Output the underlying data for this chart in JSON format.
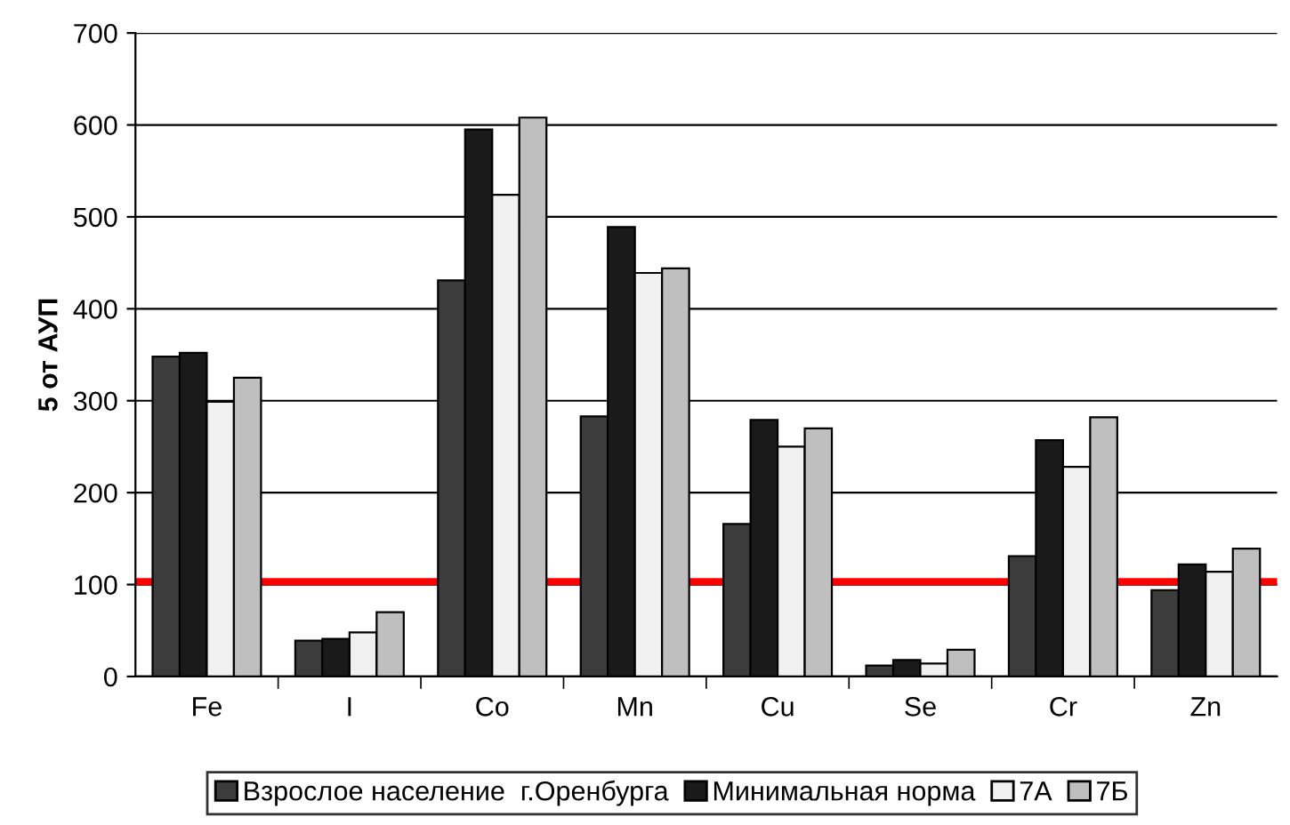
{
  "chart_data": {
    "type": "bar",
    "ylabel": "5 от АУП",
    "categories": [
      "Fe",
      "I",
      "Co",
      "Mn",
      "Cu",
      "Se",
      "Cr",
      "Zn"
    ],
    "series": [
      {
        "name": "Взрослое население  г.Оренбурга",
        "color": "#3c3c3c",
        "values": [
          348,
          39,
          431,
          283,
          166,
          12,
          131,
          94
        ]
      },
      {
        "name": "Минимальная норма",
        "color": "#1a1a1a",
        "values": [
          352,
          41,
          595,
          489,
          279,
          18,
          257,
          122
        ]
      },
      {
        "name": "7А",
        "color": "#f0f0f0",
        "values": [
          299,
          48,
          524,
          439,
          250,
          14,
          228,
          114
        ]
      },
      {
        "name": "7Б",
        "color": "#bfbfbf",
        "values": [
          325,
          70,
          608,
          444,
          270,
          29,
          282,
          139
        ]
      }
    ],
    "ylim": [
      0,
      700
    ],
    "yticks": [
      0,
      100,
      200,
      300,
      400,
      500,
      600,
      700
    ],
    "grid": "y",
    "legend": "bottom",
    "ref_lines": [
      {
        "axis": "y",
        "value": 103,
        "color": "#ff0000"
      }
    ]
  }
}
